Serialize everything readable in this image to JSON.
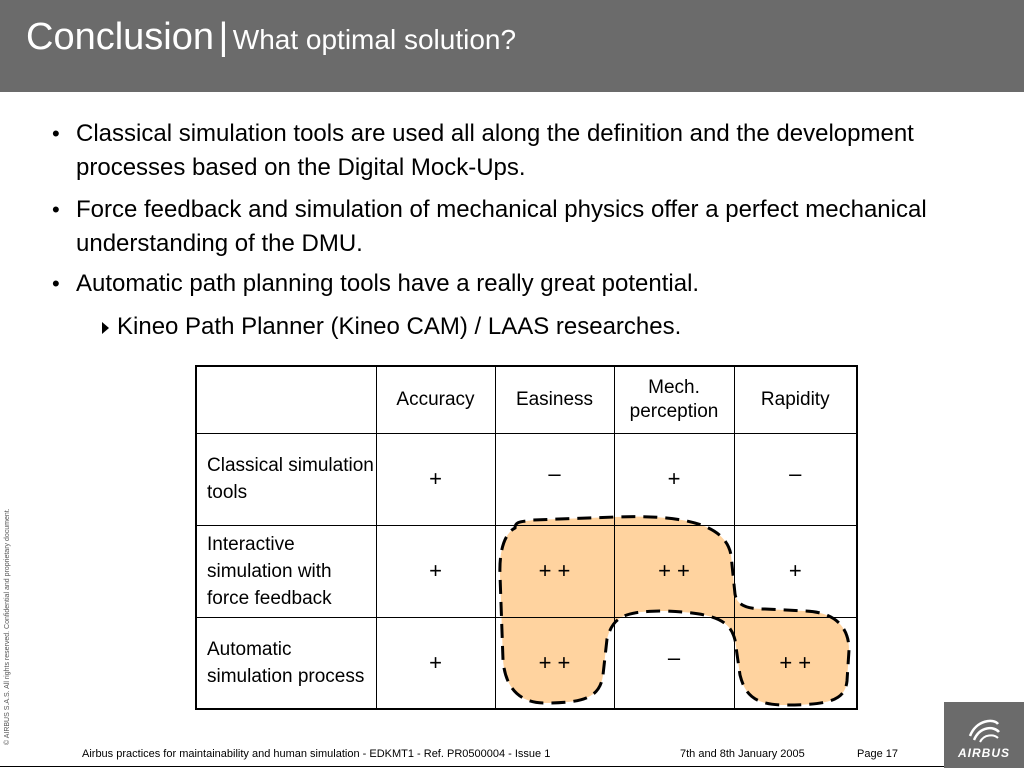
{
  "slide": {
    "title_main": "Conclusion",
    "title_sep": "|",
    "title_sub": "What optimal solution?",
    "bullets": [
      "Classical simulation tools are used all along the definition and the development processes based on the Digital Mock-Ups.",
      "Force feedback and simulation of mechanical physics offer a perfect mechanical understanding of the DMU.",
      "Automatic path planning tools have a really great potential."
    ],
    "sub_bullet": "Kineo Path Planner (Kineo CAM) / LAAS researches."
  },
  "table": {
    "headers": [
      "",
      "Accuracy",
      "Easiness",
      "Mech. perception",
      "Rapidity"
    ],
    "rows": [
      {
        "label": "Classical simulation tools",
        "cells": [
          "+",
          "–",
          "+",
          "–"
        ]
      },
      {
        "label": "Interactive simulation with force feedback",
        "cells": [
          "+",
          "+ +",
          "+ +",
          "+"
        ]
      },
      {
        "label": "Automatic simulation process",
        "cells": [
          "+",
          "+ +",
          "–",
          "+ +"
        ]
      }
    ]
  },
  "highlight_color": "#ffd39f",
  "footer": {
    "copyright": "© AIRBUS S.A.S. All rights reserved. Confidential and proprietary document.",
    "doc": "Airbus practices for maintainability and human simulation - EDKMT1 - Ref. PR0500004 - Issue 1",
    "date": "7th and 8th January 2005",
    "page": "Page 17",
    "logo_text": "AIRBUS"
  }
}
